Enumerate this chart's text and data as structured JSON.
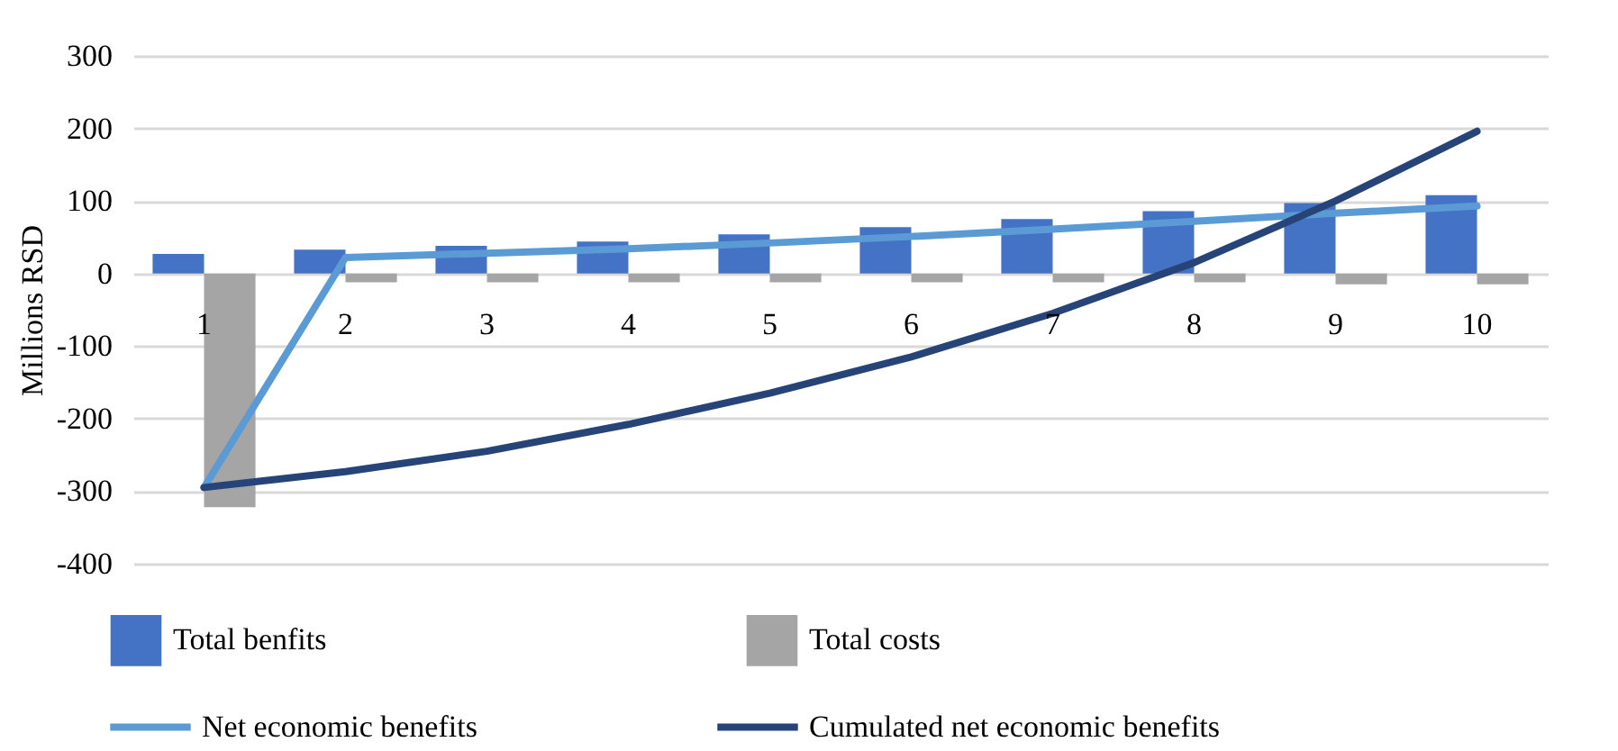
{
  "chart_data": {
    "type": "bar",
    "ylabel": "Millions RSD",
    "categories": [
      "1",
      "2",
      "3",
      "4",
      "5",
      "6",
      "7",
      "8",
      "9",
      "10"
    ],
    "series": [
      {
        "name": "Total benfits",
        "color": "#4472c4",
        "values": [
          27,
          33,
          38,
          44,
          54,
          64,
          75,
          86,
          97,
          108
        ]
      },
      {
        "name": "Total costs",
        "color": "#a5a5a5",
        "values": [
          -322,
          -12,
          -12,
          -12,
          -12,
          -12,
          -12,
          -12,
          -15,
          -15
        ]
      },
      {
        "name": "Net economic benefits",
        "type": "line",
        "color": "#5b9bd5",
        "values": [
          -295,
          22,
          28,
          34,
          42,
          51,
          61,
          72,
          83,
          93
        ]
      },
      {
        "name": "Cumulated net economic benefits",
        "type": "line",
        "color": "#264478",
        "values": [
          -295,
          -273,
          -245,
          -208,
          -165,
          -115,
          -55,
          15,
          100,
          196
        ]
      }
    ],
    "ylim": [
      -400,
      300
    ],
    "yticks": [
      -400,
      -300,
      -200,
      -100,
      0,
      100,
      200,
      300
    ],
    "grid": "y",
    "legend": "bottom"
  }
}
